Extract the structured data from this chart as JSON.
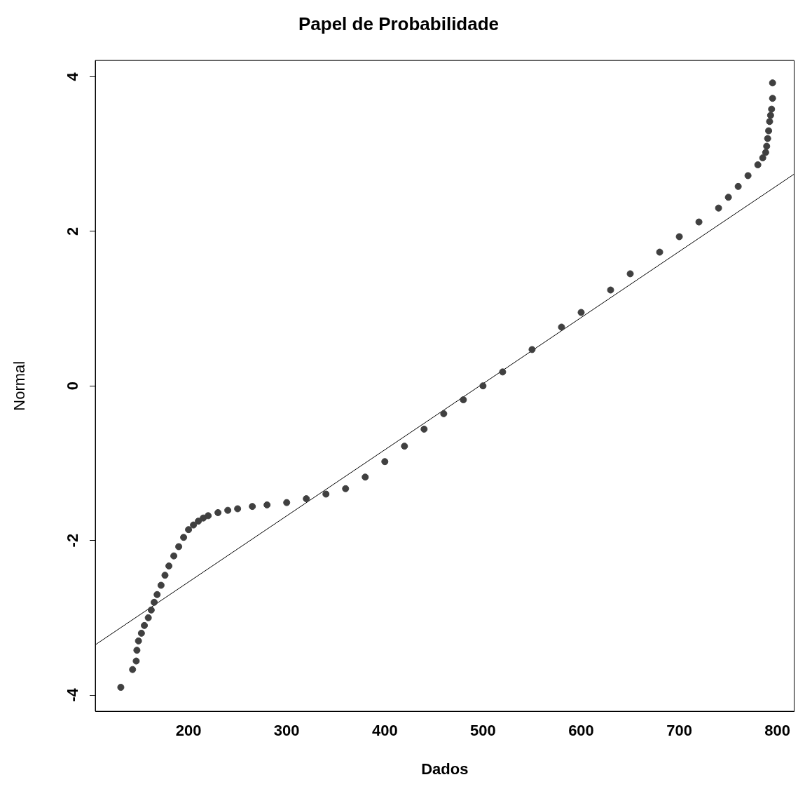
{
  "chart_data": {
    "type": "scatter",
    "title": "Papel de Probabilidade",
    "xlabel": "Dados",
    "ylabel": "Normal",
    "xlim": [
      105,
      817
    ],
    "ylim": [
      -4.21,
      4.21
    ],
    "xticks": [
      200,
      300,
      400,
      500,
      600,
      700,
      800
    ],
    "yticks": [
      -4,
      -2,
      0,
      2,
      4
    ],
    "grid": false,
    "legend": false,
    "marker": "circle",
    "series": [
      {
        "type": "scatter",
        "color": "#404040",
        "x": [
          131,
          143,
          146.7,
          147.4,
          149,
          152,
          155,
          159,
          162,
          165,
          168,
          172,
          176,
          180,
          185,
          190,
          195,
          200,
          205,
          210,
          215,
          220,
          230,
          240,
          250,
          265,
          280,
          300,
          320,
          340,
          360,
          380,
          400,
          420,
          440,
          460,
          480,
          500,
          520,
          550,
          580,
          600,
          630,
          650,
          680,
          700,
          720,
          740,
          750,
          760,
          770,
          780,
          785,
          788,
          789,
          790,
          791,
          792,
          793,
          794,
          795,
          795
        ],
        "values": [
          -3.9,
          -3.67,
          -3.56,
          -3.42,
          -3.3,
          -3.2,
          -3.1,
          -3.0,
          -2.9,
          -2.8,
          -2.7,
          -2.58,
          -2.45,
          -2.33,
          -2.2,
          -2.08,
          -1.96,
          -1.86,
          -1.8,
          -1.75,
          -1.71,
          -1.68,
          -1.64,
          -1.61,
          -1.59,
          -1.56,
          -1.54,
          -1.51,
          -1.46,
          -1.4,
          -1.33,
          -1.18,
          -0.98,
          -0.78,
          -0.56,
          -0.36,
          -0.18,
          0,
          0.18,
          0.47,
          0.76,
          0.95,
          1.24,
          1.45,
          1.73,
          1.93,
          2.12,
          2.3,
          2.44,
          2.58,
          2.72,
          2.86,
          2.95,
          3.02,
          3.1,
          3.2,
          3.3,
          3.42,
          3.5,
          3.58,
          3.72,
          3.92
        ]
      },
      {
        "type": "line",
        "color": "#000000",
        "marker": "none",
        "x": [
          105,
          817
        ],
        "values": [
          -3.35,
          2.74
        ]
      }
    ]
  }
}
